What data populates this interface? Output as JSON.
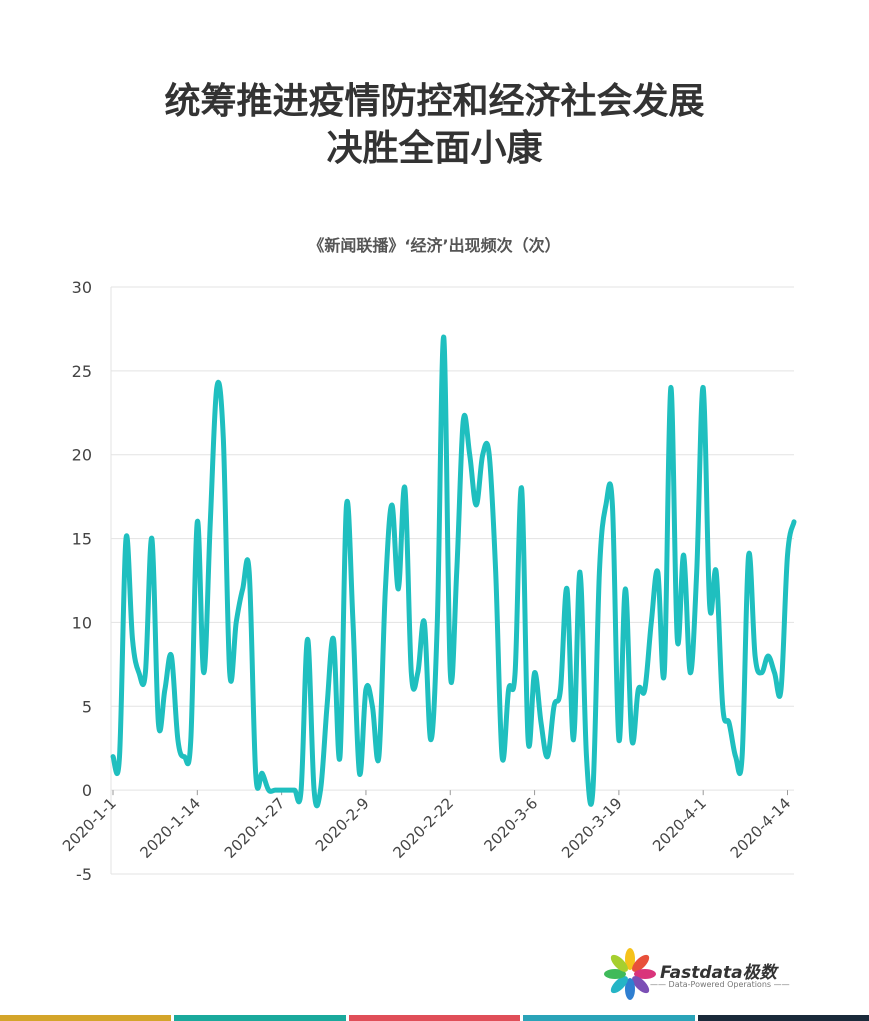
{
  "header": {
    "title_line1": "统筹推进疫情防控和经济社会发展",
    "title_line2": "决胜全面小康"
  },
  "chart_data": {
    "type": "line",
    "title": "《新闻联播》‘经济’出现频次（次）",
    "xlabel": "",
    "ylabel": "",
    "ylim": [
      -5,
      30
    ],
    "yticks": [
      -5,
      0,
      5,
      10,
      15,
      20,
      25,
      30
    ],
    "x_start": "2020-1-1",
    "x_end": "2020-4-16",
    "tick_labels": [
      "2020-1-1",
      "2020-1-14",
      "2020-1-27",
      "2020-2-9",
      "2020-2-22",
      "2020-3-6",
      "2020-3-19",
      "2020-4-1",
      "2020-4-14"
    ],
    "grid": true,
    "line_color": "#1fbfbf",
    "series": [
      {
        "name": "",
        "values": [
          2,
          2,
          15,
          9,
          7,
          7,
          15,
          4,
          6,
          8,
          3,
          2,
          3,
          16,
          7,
          16,
          24,
          21,
          7,
          10,
          12,
          13,
          1,
          1,
          0,
          0,
          0,
          0,
          0,
          0,
          9,
          0,
          0,
          5,
          9,
          2,
          17,
          10,
          1,
          6,
          5,
          2,
          12,
          17,
          12,
          18,
          7,
          7,
          10,
          3,
          10,
          27,
          7,
          13,
          22,
          20,
          17,
          20,
          20,
          13,
          2,
          6,
          7,
          18,
          3,
          7,
          4,
          2,
          5,
          6,
          12,
          3,
          13,
          2,
          0,
          13,
          17,
          17,
          3,
          12,
          3,
          6,
          6,
          10,
          13,
          7,
          24,
          9,
          14,
          7,
          13,
          24,
          11,
          13,
          5,
          4,
          2,
          2,
          14,
          8,
          7,
          8,
          7,
          6,
          14,
          16
        ]
      }
    ]
  },
  "logo": {
    "brand": "Fastdata极数",
    "tagline": "—— Data-Powered Operations ——"
  },
  "colors": {
    "stripes": [
      "#d4a52a",
      "#1aa99c",
      "#e04e58",
      "#2aa3b8",
      "#1a2a3a"
    ]
  }
}
